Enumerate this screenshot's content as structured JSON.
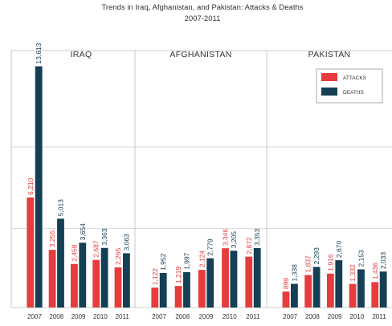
{
  "chart_data": {
    "type": "bar",
    "title": "Trends in Iraq, Afghanistan, and Pakistan: Attacks & Deaths",
    "subtitle": "2007-2011",
    "categories": [
      "2007",
      "2008",
      "2009",
      "2010",
      "2011"
    ],
    "panels": [
      {
        "name": "IRAQ",
        "series": [
          {
            "name": "ATTACKS",
            "values": [
              6210,
              3255,
              2458,
              2687,
              2265
            ],
            "labels": [
              "6,210",
              "3,255",
              "2,458",
              "2,687",
              "2,265"
            ]
          },
          {
            "name": "DEATHS",
            "values": [
              13613,
              5013,
              3654,
              3363,
              3063
            ],
            "labels": [
              "13,613",
              "5,013",
              "3,654",
              "3,363",
              "3,063"
            ]
          }
        ]
      },
      {
        "name": "AFGHANISTAN",
        "series": [
          {
            "name": "ATTACKS",
            "values": [
              1122,
              1219,
              2124,
              3346,
              2872
            ],
            "labels": [
              "1,122",
              "1,219",
              "2,124",
              "3,346",
              "2,872"
            ]
          },
          {
            "name": "DEATHS",
            "values": [
              1952,
              1997,
              2779,
              3205,
              3353
            ],
            "labels": [
              "1,952",
              "1,997",
              "2,779",
              "3,205",
              "3,353"
            ]
          }
        ]
      },
      {
        "name": "PAKISTAN",
        "series": [
          {
            "name": "ATTACKS",
            "values": [
              899,
              1837,
              1916,
              1332,
              1436
            ],
            "labels": [
              "899",
              "1,837",
              "1,916",
              "1,332",
              "1,436"
            ]
          },
          {
            "name": "DEATHS",
            "values": [
              1338,
              2293,
              2670,
              2153,
              2033
            ],
            "labels": [
              "1,338",
              "2,293",
              "2,670",
              "2,153",
              "2,033"
            ]
          }
        ]
      }
    ],
    "legend": {
      "position": "top-right",
      "items": [
        "ATTACKS",
        "DEATHS"
      ]
    },
    "ylim": [
      0,
      14500
    ],
    "grid": true,
    "colors": {
      "attacks": "#e63c3c",
      "deaths": "#143f55",
      "grid": "#d0d0d0",
      "frame": "#bbbbbb"
    }
  }
}
